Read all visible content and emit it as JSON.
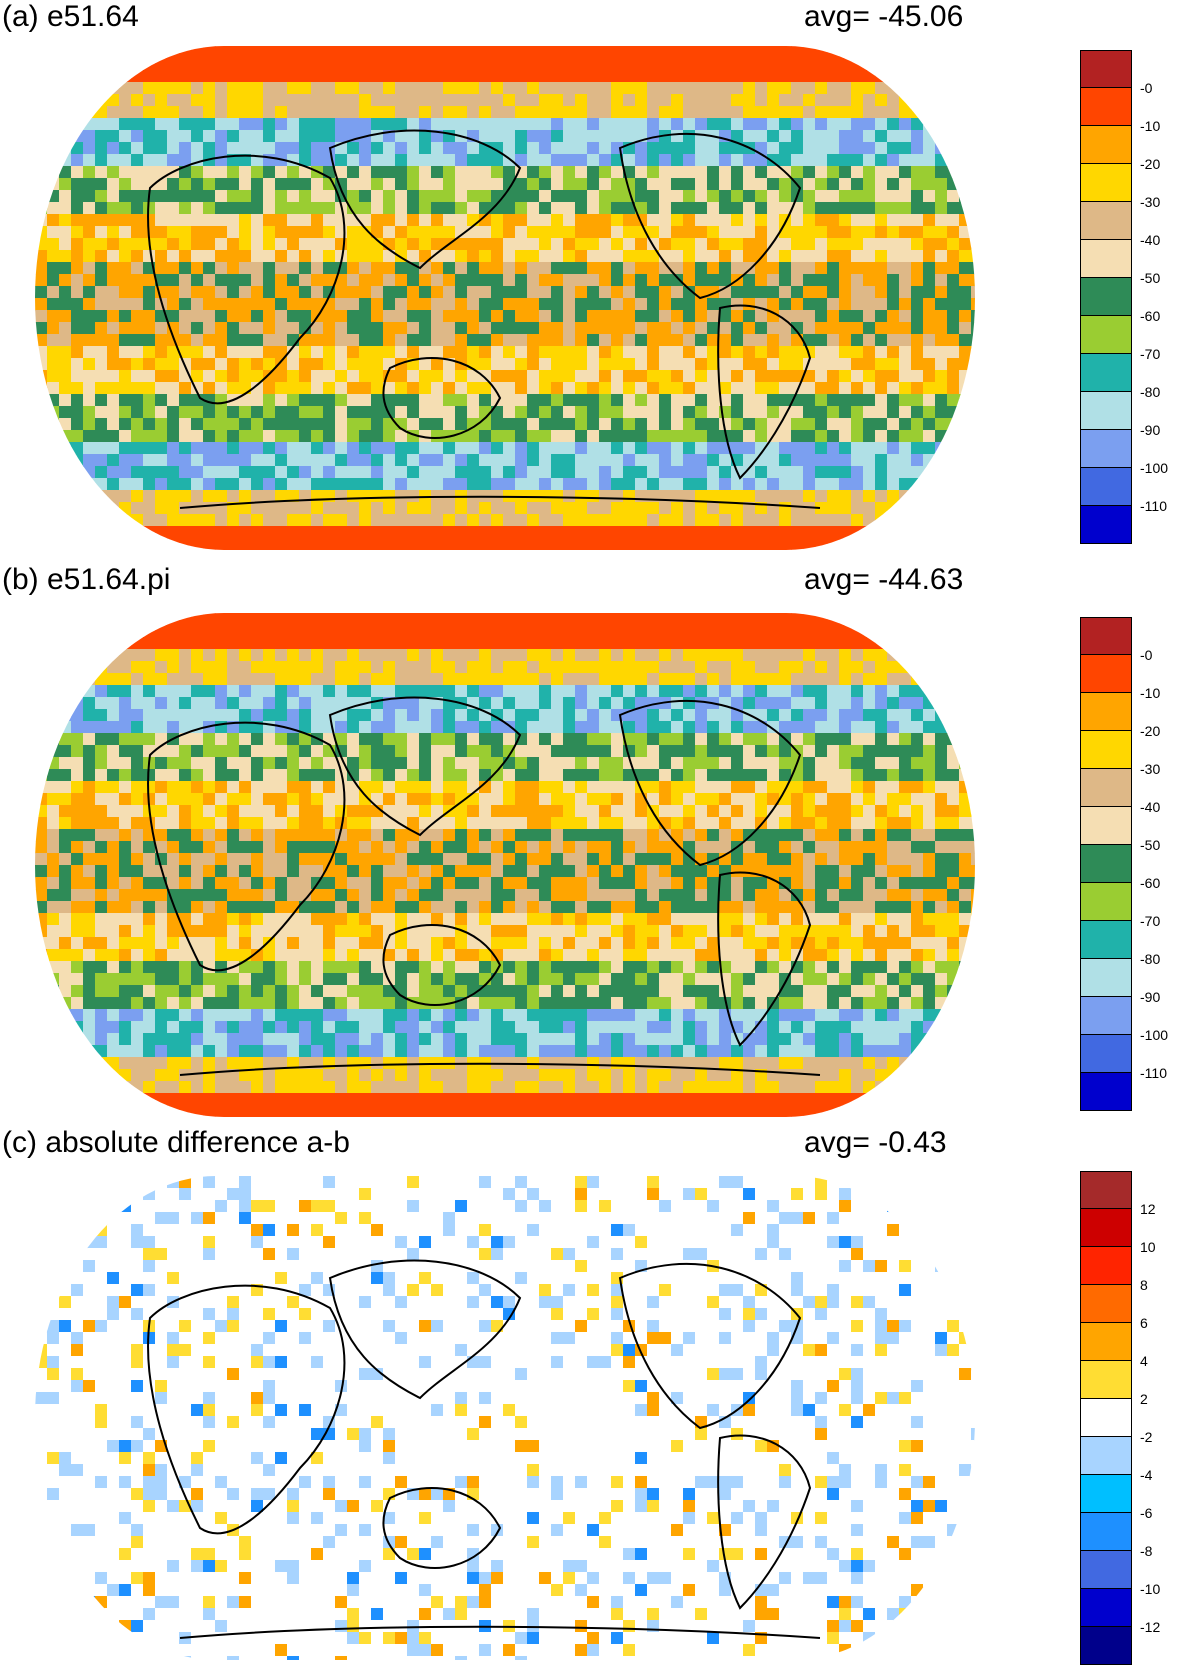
{
  "panels": [
    {
      "id": "a",
      "title": "(a) e51.64",
      "avg": "avg=  -45.06",
      "colorbar": {
        "colors": [
          "#b22222",
          "#ff4500",
          "#ffa500",
          "#ffd700",
          "#deb887",
          "#f5deb3",
          "#2e8b57",
          "#9acd32",
          "#20b2aa",
          "#b0e0e6",
          "#7b9ff0",
          "#4169e1",
          "#0000cd"
        ],
        "labels": [
          "-0",
          "-10",
          "-20",
          "-30",
          "-40",
          "-50",
          "-60",
          "-70",
          "-80",
          "-90",
          "-100",
          "-110"
        ]
      }
    },
    {
      "id": "b",
      "title": "(b) e51.64.pi",
      "avg": "avg=  -44.63",
      "colorbar": {
        "colors": [
          "#b22222",
          "#ff4500",
          "#ffa500",
          "#ffd700",
          "#deb887",
          "#f5deb3",
          "#2e8b57",
          "#9acd32",
          "#20b2aa",
          "#b0e0e6",
          "#7b9ff0",
          "#4169e1",
          "#0000cd"
        ],
        "labels": [
          "-0",
          "-10",
          "-20",
          "-30",
          "-40",
          "-50",
          "-60",
          "-70",
          "-80",
          "-90",
          "-100",
          "-110"
        ]
      }
    },
    {
      "id": "c",
      "title": "(c) absolute difference a-b",
      "avg": "avg=   -0.43",
      "colorbar": {
        "colors": [
          "#a52a2a",
          "#cd0000",
          "#ff2400",
          "#ff6a00",
          "#ffa500",
          "#ffdd33",
          "#ffffff",
          "#a8d4ff",
          "#00bfff",
          "#1e90ff",
          "#4169e1",
          "#0000cd",
          "#00008b"
        ],
        "labels": [
          "12",
          "10",
          "8",
          "6",
          "4",
          "2",
          "-2",
          "-4",
          "-6",
          "-8",
          "-10",
          "-12"
        ]
      }
    }
  ]
}
